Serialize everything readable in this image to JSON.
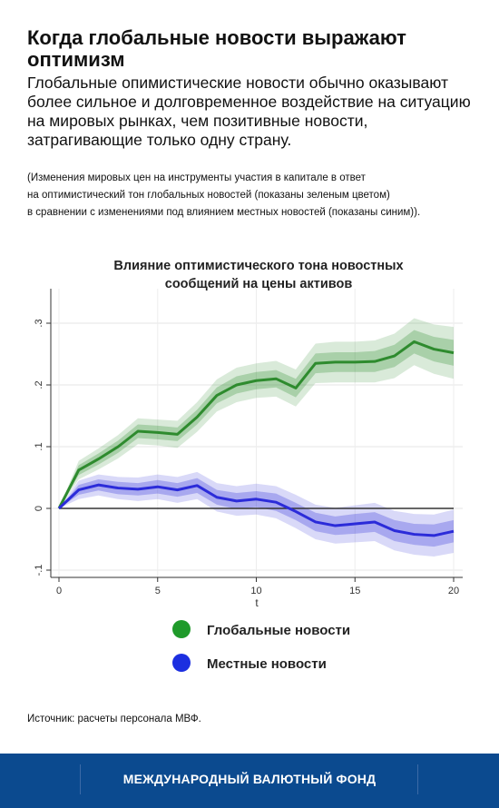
{
  "header": {
    "title": "Когда глобальные новости выражают оптимизм",
    "subtitle": "Глобальные опимистические новости обычно оказывают более сильное и долговременное воздействие на ситуацию на мировых рынках, чем позитивные новости, затрагивающие только одну страну.",
    "note_lines": [
      "(Изменения мировых цен на инструменты участия в капитале в ответ",
      "на оптимистический тон глобальных новостей (показаны зеленым цветом)",
      "в сравнении с изменениями под влиянием местных новостей (показаны синим))."
    ]
  },
  "chart_data": {
    "type": "line",
    "title_lines": [
      "Влияние оптимистического тона новостных",
      "сообщений на цены активов"
    ],
    "xlabel": "t",
    "ylabel": "",
    "xlim": [
      0,
      20
    ],
    "ylim": [
      -0.1,
      0.3
    ],
    "x_ticks": [
      0,
      5,
      10,
      15,
      20
    ],
    "y_ticks": [
      -0.1,
      0,
      0.1,
      0.2,
      0.3
    ],
    "y_tick_labels": [
      "-.1",
      "0",
      ".1",
      ".2",
      ".3"
    ],
    "zero_line": true,
    "grid": true,
    "legend_position": "bottom",
    "x": [
      0,
      1,
      2,
      3,
      4,
      5,
      6,
      7,
      8,
      9,
      10,
      11,
      12,
      13,
      14,
      15,
      16,
      17,
      18,
      19,
      20
    ],
    "series": [
      {
        "name": "Глобальные новости",
        "color": "#2e8b2e",
        "values": [
          0,
          0.062,
          0.08,
          0.1,
          0.125,
          0.123,
          0.12,
          0.148,
          0.183,
          0.2,
          0.207,
          0.21,
          0.195,
          0.235,
          0.237,
          0.237,
          0.238,
          0.247,
          0.27,
          0.258,
          0.252
        ],
        "inner_band_halfwidth": [
          0,
          0.008,
          0.009,
          0.01,
          0.011,
          0.011,
          0.011,
          0.012,
          0.013,
          0.014,
          0.014,
          0.014,
          0.015,
          0.016,
          0.016,
          0.016,
          0.017,
          0.018,
          0.019,
          0.02,
          0.021
        ],
        "outer_band_halfwidth": [
          0,
          0.015,
          0.017,
          0.019,
          0.021,
          0.021,
          0.022,
          0.024,
          0.026,
          0.028,
          0.028,
          0.029,
          0.03,
          0.032,
          0.033,
          0.033,
          0.034,
          0.036,
          0.038,
          0.04,
          0.042
        ]
      },
      {
        "name": "Местные новости",
        "color": "#2b2bd9",
        "values": [
          0,
          0.03,
          0.038,
          0.033,
          0.031,
          0.035,
          0.03,
          0.037,
          0.018,
          0.012,
          0.015,
          0.01,
          -0.005,
          -0.022,
          -0.028,
          -0.025,
          -0.022,
          -0.036,
          -0.042,
          -0.044,
          -0.037
        ],
        "inner_band_halfwidth": [
          0,
          0.008,
          0.009,
          0.01,
          0.01,
          0.011,
          0.011,
          0.012,
          0.012,
          0.013,
          0.013,
          0.014,
          0.014,
          0.015,
          0.015,
          0.016,
          0.016,
          0.017,
          0.017,
          0.018,
          0.018
        ],
        "outer_band_halfwidth": [
          0,
          0.015,
          0.017,
          0.018,
          0.019,
          0.02,
          0.021,
          0.022,
          0.023,
          0.024,
          0.025,
          0.026,
          0.027,
          0.028,
          0.029,
          0.03,
          0.031,
          0.032,
          0.033,
          0.034,
          0.035
        ]
      }
    ]
  },
  "source": "Источник: расчеты персонала МВФ.",
  "footer": {
    "org_name": "МЕЖДУНАРОДНЫЙ ВАЛЮТНЫЙ ФОНД",
    "background_color": "#0b4a8f"
  }
}
